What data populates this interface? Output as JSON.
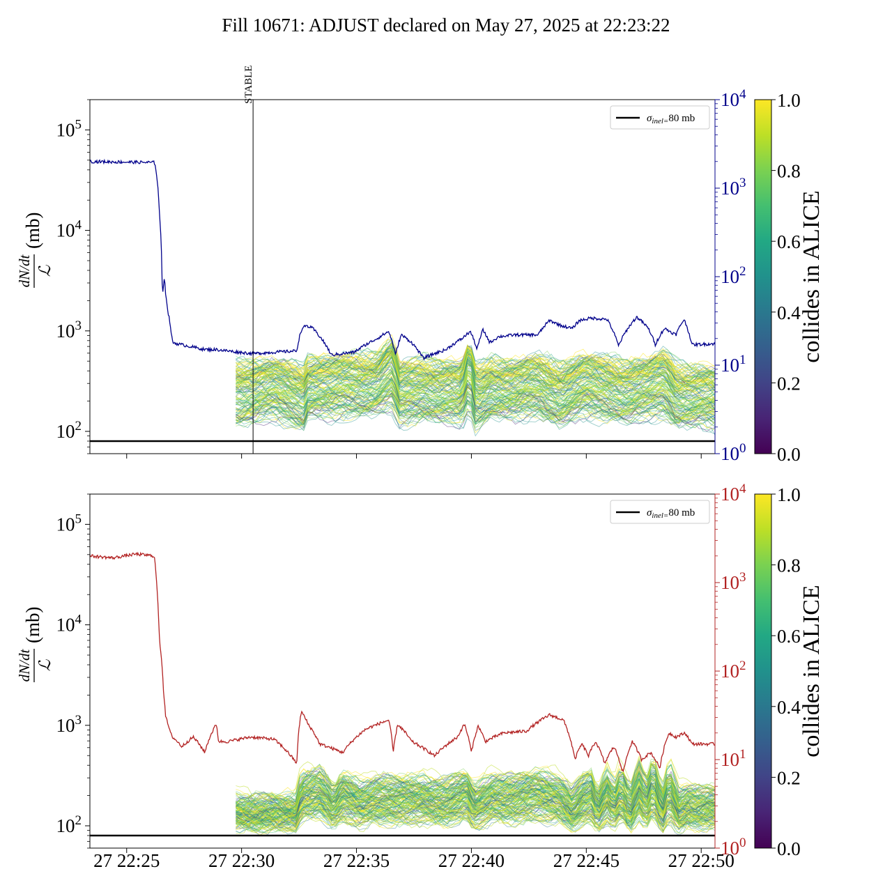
{
  "figure": {
    "title": "Fill 10671: ADJUST declared on May 27, 2025 at 22:23:22"
  },
  "chart_data": [
    {
      "type": "line",
      "panel": "top",
      "ylabel_numerator": "dN/dt",
      "ylabel_denominator": "ℒ",
      "ylabel_unit": "(mb)",
      "yscale": "log",
      "ylim": [
        60,
        200000
      ],
      "yticks": [
        100,
        1000,
        10000,
        100000
      ],
      "secondary_y": {
        "scale": "log",
        "ylim": [
          1,
          10000
        ],
        "ticks": [
          1,
          10,
          100,
          1000,
          10000
        ],
        "color": "#00008b"
      },
      "x_range_min": [
        0,
        27.2
      ],
      "xtick_minutes": [
        1.6,
        6.6,
        11.6,
        16.6,
        21.6,
        26.6
      ],
      "reference_line": {
        "label": "σinel=80 mb",
        "value": 80
      },
      "vertical_marker": {
        "label": "STABLE",
        "x_min": 7.1
      },
      "band_start_min": 6.35,
      "secondary_series": {
        "color": "#00008b",
        "x_min": [
          0,
          2.8,
          2.85,
          3.0,
          3.05,
          3.15,
          3.25,
          3.3,
          3.4,
          3.55,
          3.6,
          4.0,
          5.0,
          5.5,
          6.5,
          7.1,
          8.0,
          9.0,
          9.2,
          9.4,
          9.7,
          10.5,
          11.5,
          12.5,
          13.0,
          13.3,
          13.55,
          14.0,
          14.5,
          15.5,
          16.2,
          16.55,
          16.85,
          17.1,
          17.4,
          17.8,
          18.5,
          19.5,
          20.0,
          20.5,
          21.0,
          21.3,
          21.8,
          22.5,
          23.0,
          23.8,
          24.3,
          24.6,
          25.0,
          25.5,
          25.85,
          26.2,
          27.2
        ],
        "y": [
          2000,
          1950,
          1800,
          700,
          400,
          60,
          100,
          60,
          40,
          22,
          18,
          17,
          15,
          15,
          14,
          13.5,
          14,
          14.5,
          25,
          28,
          26,
          13,
          14,
          20,
          24,
          13,
          22,
          18,
          12,
          15,
          20,
          24,
          15,
          25,
          18,
          21,
          22,
          22,
          32,
          28,
          26,
          32,
          34,
          33,
          16.5,
          35,
          26,
          17,
          26,
          22,
          33,
          17,
          17.5
        ]
      },
      "band": {
        "colorbar_label": "collides in ALICE",
        "colorbar_ticks": [
          0.0,
          0.2,
          0.4,
          0.6,
          0.8,
          1.0
        ],
        "x_min": [
          6.35,
          8.0,
          9.3,
          9.5,
          10.5,
          11.5,
          12.5,
          13.2,
          13.4,
          14.5,
          15.5,
          16.2,
          16.5,
          16.8,
          17.5,
          18.5,
          19.5,
          20.5,
          21.5,
          22.5,
          23.3,
          24.3,
          25.0,
          25.5,
          26.5,
          27.2
        ],
        "center": [
          290,
          300,
          260,
          320,
          310,
          330,
          350,
          500,
          260,
          300,
          290,
          270,
          520,
          240,
          310,
          290,
          320,
          270,
          320,
          310,
          290,
          300,
          360,
          260,
          250,
          240
        ],
        "low": [
          120,
          140,
          110,
          150,
          140,
          150,
          160,
          170,
          120,
          140,
          130,
          120,
          170,
          110,
          150,
          140,
          150,
          120,
          150,
          140,
          130,
          140,
          150,
          120,
          120,
          110
        ],
        "high": [
          480,
          490,
          430,
          540,
          520,
          560,
          580,
          800,
          440,
          520,
          480,
          460,
          740,
          420,
          520,
          480,
          540,
          460,
          550,
          520,
          490,
          500,
          600,
          460,
          430,
          410
        ],
        "curve_count": 150
      }
    },
    {
      "type": "line",
      "panel": "bottom",
      "ylabel_numerator": "dN/dt",
      "ylabel_denominator": "ℒ",
      "ylabel_unit": "(mb)",
      "yscale": "log",
      "ylim": [
        60,
        200000
      ],
      "yticks": [
        100,
        1000,
        10000,
        100000
      ],
      "secondary_y": {
        "scale": "log",
        "ylim": [
          1,
          10000
        ],
        "ticks": [
          1,
          10,
          100,
          1000,
          10000
        ],
        "color": "#b22222"
      },
      "x_range_min": [
        0,
        27.2
      ],
      "xtick_labels": [
        "27 22:25",
        "27 22:30",
        "27 22:35",
        "27 22:40",
        "27 22:45",
        "27 22:50"
      ],
      "xtick_minutes": [
        1.6,
        6.6,
        11.6,
        16.6,
        21.6,
        26.6
      ],
      "reference_line": {
        "label": "σinel=80 mb",
        "value": 80
      },
      "band_start_min": 6.35,
      "secondary_series": {
        "color": "#b22222",
        "x_min": [
          0,
          1.0,
          2.0,
          2.8,
          2.9,
          3.0,
          3.05,
          3.1,
          3.2,
          3.3,
          3.5,
          3.6,
          4.0,
          4.5,
          5.0,
          5.3,
          5.5,
          5.6,
          6.0,
          7.0,
          8.0,
          9.0,
          9.2,
          9.5,
          10.0,
          11.0,
          12.0,
          13.0,
          13.2,
          13.4,
          14.0,
          15.0,
          16.0,
          16.3,
          16.6,
          16.9,
          17.2,
          18.0,
          19.0,
          20.0,
          20.6,
          21.1,
          21.4,
          21.7,
          22.0,
          22.4,
          22.8,
          23.2,
          23.6,
          24.0,
          24.4,
          24.8,
          25.2,
          25.5,
          25.9,
          26.2,
          27.2
        ],
        "y": [
          2000,
          1900,
          2100,
          2000,
          1000,
          300,
          200,
          150,
          60,
          30,
          20,
          18,
          14,
          18,
          12,
          20,
          25,
          16,
          16,
          18,
          17,
          9,
          35,
          25,
          15,
          12,
          22,
          28,
          12,
          25,
          16,
          11,
          18,
          25,
          12,
          24,
          16,
          20,
          21,
          32,
          28,
          10,
          15,
          11,
          16,
          9,
          14,
          7,
          16,
          10,
          12,
          8,
          20,
          18,
          20,
          15,
          15
        ]
      },
      "band": {
        "colorbar_label": "collides in ALICE",
        "colorbar_ticks": [
          0.0,
          0.2,
          0.4,
          0.6,
          0.8,
          1.0
        ],
        "x_min": [
          6.35,
          7.5,
          9.0,
          9.1,
          9.3,
          10.0,
          10.6,
          11.0,
          11.8,
          12.5,
          13.3,
          14.5,
          15.5,
          16.4,
          16.7,
          17.5,
          18.5,
          19.5,
          20.5,
          21.0,
          21.4,
          21.8,
          22.1,
          22.5,
          22.8,
          23.1,
          23.5,
          23.9,
          24.2,
          24.5,
          24.9,
          25.2,
          25.6,
          26.0,
          26.6,
          27.2
        ],
        "center": [
          135,
          130,
          130,
          180,
          210,
          220,
          150,
          200,
          170,
          190,
          180,
          190,
          170,
          210,
          150,
          200,
          190,
          210,
          190,
          140,
          180,
          200,
          140,
          210,
          160,
          220,
          140,
          230,
          160,
          250,
          130,
          230,
          140,
          160,
          150,
          150
        ],
        "low": [
          100,
          95,
          100,
          110,
          120,
          125,
          100,
          115,
          105,
          110,
          108,
          112,
          105,
          118,
          98,
          115,
          110,
          118,
          110,
          95,
          105,
          110,
          92,
          115,
          98,
          118,
          92,
          120,
          98,
          125,
          90,
          120,
          92,
          100,
          98,
          100
        ],
        "high": [
          200,
          190,
          195,
          290,
          340,
          360,
          230,
          320,
          270,
          300,
          290,
          300,
          280,
          330,
          240,
          320,
          300,
          340,
          300,
          220,
          300,
          340,
          210,
          360,
          260,
          400,
          230,
          420,
          260,
          480,
          210,
          420,
          230,
          250,
          230,
          230
        ],
        "curve_count": 150
      }
    }
  ]
}
